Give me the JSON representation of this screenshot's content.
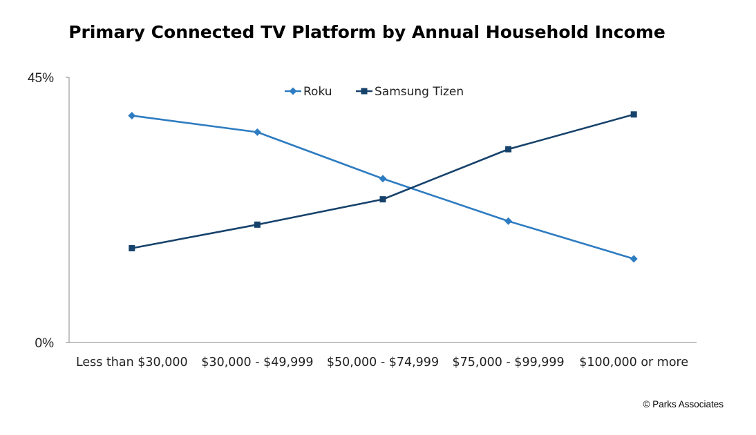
{
  "chart_data": {
    "type": "line",
    "title": "Primary Connected TV Platform by Annual Household Income",
    "xlabel": "",
    "ylabel": "",
    "categories": [
      "Less than $30,000",
      "$30,000 - $49,999",
      "$50,000 - $74,999",
      "$75,000 - $99,999",
      "$100,000 or more"
    ],
    "y_ticks": [
      "0%",
      "45%"
    ],
    "ylim": [
      0,
      45
    ],
    "grid": false,
    "legend_position": "top-center",
    "series": [
      {
        "name": "Roku",
        "values": [
          38.5,
          35.7,
          27.8,
          20.6,
          14.2
        ],
        "color": "#2E7CC1",
        "marker": "diamond"
      },
      {
        "name": "Samsung Tizen",
        "values": [
          16.0,
          20.0,
          24.3,
          32.8,
          38.7
        ],
        "color": "#17426B",
        "marker": "square"
      }
    ]
  },
  "footer": {
    "copyright": "© Parks Associates"
  }
}
